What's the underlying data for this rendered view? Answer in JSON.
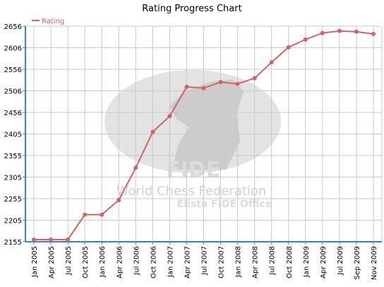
{
  "chart_data": {
    "type": "line",
    "title": "Rating Progress Chart",
    "xlabel": "",
    "ylabel": "",
    "legend": {
      "label": "Rating",
      "placement": "top-left"
    },
    "watermark": {
      "line1": "FIDE",
      "line2": "World Chess Federation",
      "line3": "Elista FIDE Office"
    },
    "grid": true,
    "ylim": [
      2155,
      2656
    ],
    "yticks": [
      "2155",
      "2205",
      "2255",
      "2305",
      "2355",
      "2405",
      "2456",
      "2506",
      "2556",
      "2606",
      "2656"
    ],
    "categories": [
      "Jan 2005",
      "Apr 2005",
      "Jul 2005",
      "Oct 2005",
      "Jan 2006",
      "Apr 2006",
      "Jul 2006",
      "Oct 2006",
      "Jan 2007",
      "Apr 2007",
      "Jul 2007",
      "Oct 2007",
      "Jan 2008",
      "Apr 2008",
      "Jul 2008",
      "Oct 2008",
      "Jan 2009",
      "Apr 2009",
      "Jul 2009",
      "Sep 2009",
      "Nov 2009"
    ],
    "series": [
      {
        "name": "Rating",
        "color": "#d16468",
        "values": [
          2160,
          2160,
          2160,
          2218,
          2218,
          2252,
          2327,
          2410,
          2447,
          2515,
          2512,
          2526,
          2522,
          2535,
          2572,
          2607,
          2625,
          2640,
          2645,
          2643,
          2638
        ]
      }
    ]
  }
}
